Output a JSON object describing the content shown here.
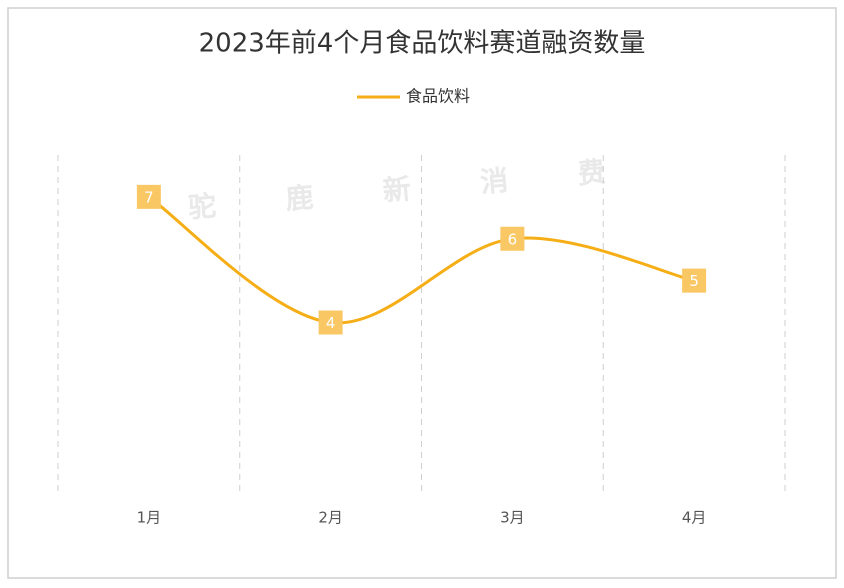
{
  "chart_data": {
    "type": "line",
    "title": "2023年前4个月食品饮料赛道融资数量",
    "watermark": "驼 鹿 新 消 费",
    "categories": [
      "1月",
      "2月",
      "3月",
      "4月"
    ],
    "series": [
      {
        "name": "食品饮料",
        "color": "#f5ae16",
        "values": [
          7,
          4,
          6,
          5
        ]
      }
    ],
    "ylim": [
      0,
      8
    ],
    "smooth": true
  }
}
